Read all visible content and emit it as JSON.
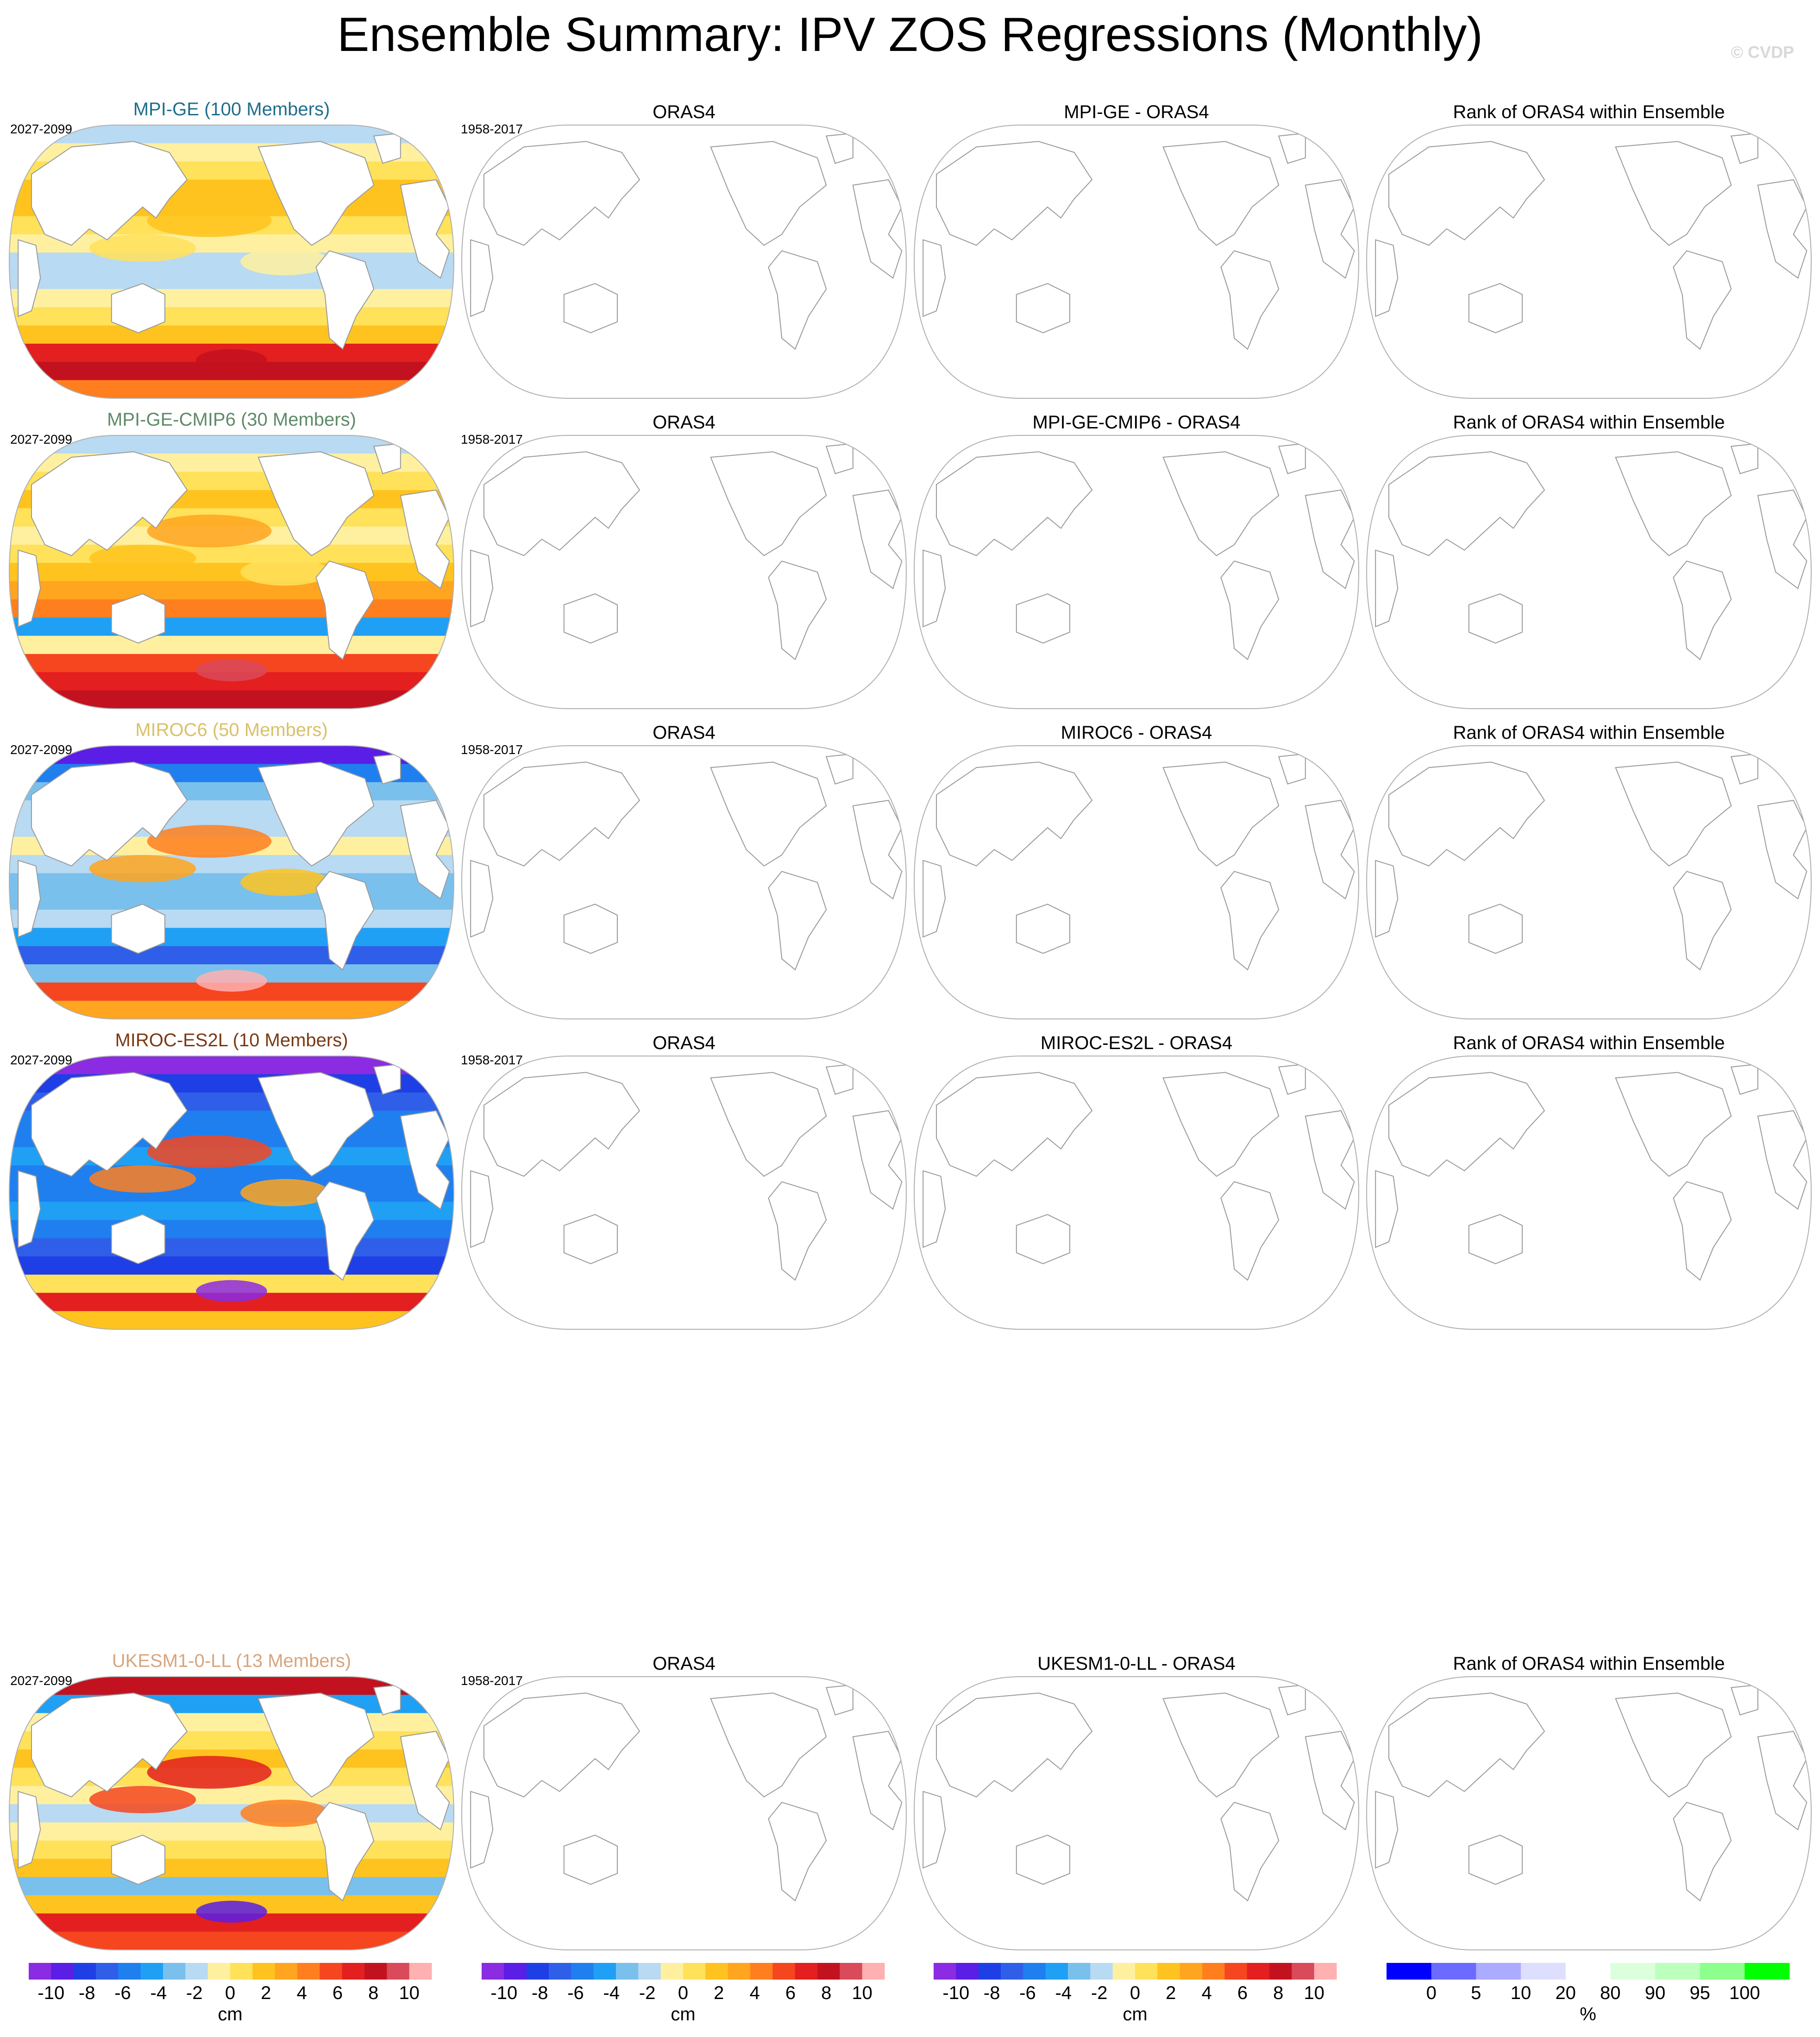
{
  "title": "Ensemble Summary: IPV ZOS Regressions (Monthly)",
  "copyright": "© CVDP",
  "chart_data": {
    "type": "heatmap",
    "projection": "Robinson, Pacific-centered",
    "columns": [
      {
        "key": "ensemble",
        "title_suffix": ""
      },
      {
        "key": "obs",
        "title": "ORAS4"
      },
      {
        "key": "diff",
        "title_suffix": " - ORAS4"
      },
      {
        "key": "rank",
        "title": "Rank of ORAS4 within Ensemble"
      }
    ],
    "rows": [
      {
        "model": "MPI-GE",
        "ensemble_title": "MPI-GE (100 Members)",
        "title_color": "#1f6e8c",
        "period": "2027-2099",
        "obs_period": "1958-2017",
        "obs_title": "ORAS4",
        "diff_title": "MPI-GE - ORAS4",
        "rank_title": "Rank of ORAS4 within Ensemble"
      },
      {
        "model": "MPI-GE-CMIP6",
        "ensemble_title": "MPI-GE-CMIP6 (30 Members)",
        "title_color": "#5e8a68",
        "period": "2027-2099",
        "obs_period": "1958-2017",
        "obs_title": "ORAS4",
        "diff_title": "MPI-GE-CMIP6 - ORAS4",
        "rank_title": "Rank of ORAS4 within Ensemble"
      },
      {
        "model": "MIROC6",
        "ensemble_title": "MIROC6 (50 Members)",
        "title_color": "#d9c06a",
        "period": "2027-2099",
        "obs_period": "1958-2017",
        "obs_title": "ORAS4",
        "diff_title": "MIROC6 - ORAS4",
        "rank_title": "Rank of ORAS4 within Ensemble"
      },
      {
        "model": "MIROC-ES2L",
        "ensemble_title": "MIROC-ES2L (10 Members)",
        "title_color": "#7a3a14",
        "period": "2027-2099",
        "obs_period": "1958-2017",
        "obs_title": "ORAS4",
        "diff_title": "MIROC-ES2L - ORAS4",
        "rank_title": "Rank of ORAS4 within Ensemble"
      },
      {
        "model": "UKESM1-0-LL",
        "ensemble_title": "UKESM1-0-LL (13 Members)",
        "title_color": "#d7a57e",
        "period": "2027-2099",
        "obs_period": "1958-2017",
        "obs_title": "ORAS4",
        "diff_title": "UKESM1-0-LL - ORAS4",
        "rank_title": "Rank of ORAS4 within Ensemble"
      }
    ],
    "colorbar_cm": {
      "units": "cm",
      "tick_labels": [
        "-10",
        "-8",
        "-6",
        "-4",
        "-2",
        "0",
        "2",
        "4",
        "6",
        "8",
        "10"
      ],
      "colors": [
        "#8b2be2",
        "#5a1ee6",
        "#1f3fe6",
        "#2f5fe8",
        "#1f7fef",
        "#1fa0f5",
        "#7ac0ec",
        "#b8daf2",
        "#fff0a0",
        "#ffe15a",
        "#ffc31f",
        "#ffa51f",
        "#ff7f1f",
        "#f5461f",
        "#e31f1f",
        "#c3121f",
        "#d94a5a",
        "#ffb0b0"
      ]
    },
    "colorbar_rank": {
      "units": "%",
      "tick_labels": [
        "0",
        "5",
        "10",
        "20",
        "80",
        "90",
        "95",
        "100"
      ],
      "colors": [
        "#0000ff",
        "#6b6bff",
        "#ababff",
        "#dedeff",
        "#ffffff",
        "#dcffdc",
        "#bdffbd",
        "#8cff8c",
        "#00ff00"
      ]
    }
  }
}
